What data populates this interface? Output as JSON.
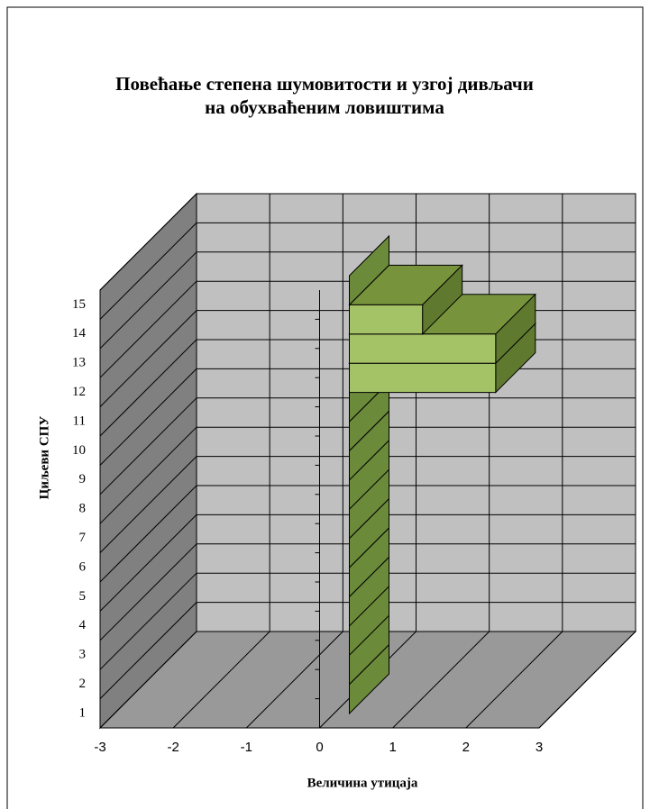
{
  "chart_data": {
    "type": "bar3d",
    "orientation": "horizontal",
    "title": "Повећање степена шумовитости и узгој дивљачи\nна обухваћеним ловиштима",
    "x_label": "Величина утицаја",
    "y_label": "Циљеви СПУ",
    "categories": [
      "1",
      "2",
      "3",
      "4",
      "5",
      "6",
      "7",
      "8",
      "9",
      "10",
      "11",
      "12",
      "13",
      "14",
      "15"
    ],
    "values": [
      0,
      0,
      0,
      0,
      0,
      0,
      0,
      0,
      0,
      0,
      0,
      2,
      2,
      1,
      0
    ],
    "color": "#a4c266",
    "xlim": [
      -3,
      3
    ],
    "xticks": [
      -3,
      -2,
      -1,
      0,
      1,
      2,
      3
    ],
    "grid": true
  }
}
